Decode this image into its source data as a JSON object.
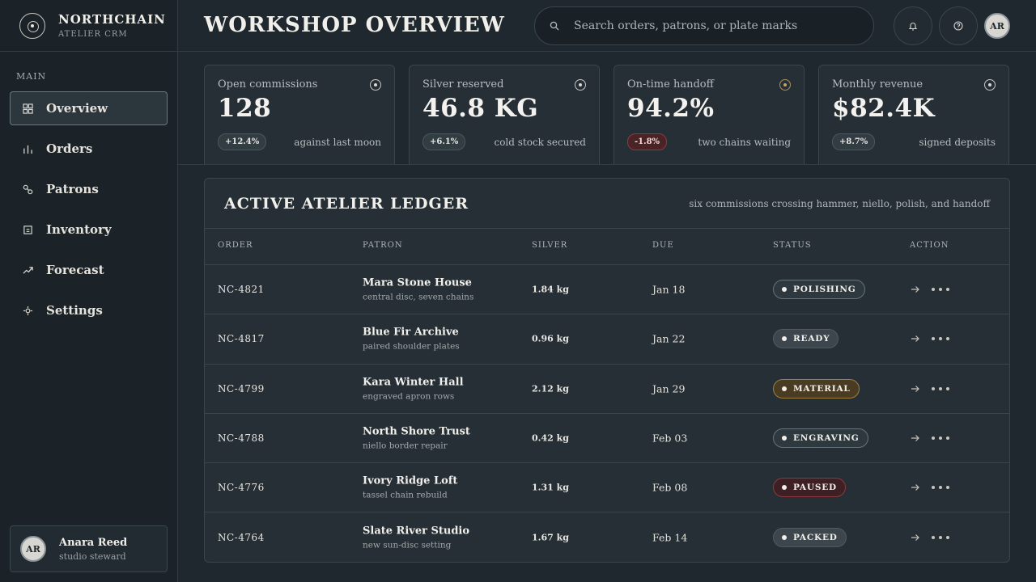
{
  "brand": {
    "name": "NORTHCHAIN",
    "subtitle": "ATELIER CRM"
  },
  "sidebar": {
    "section": "MAIN",
    "items": [
      {
        "label": "Overview",
        "icon": "grid-icon",
        "active": true
      },
      {
        "label": "Orders",
        "icon": "bars-icon",
        "active": false
      },
      {
        "label": "Patrons",
        "icon": "link-icon",
        "active": false
      },
      {
        "label": "Inventory",
        "icon": "box-icon",
        "active": false
      },
      {
        "label": "Forecast",
        "icon": "trend-icon",
        "active": false
      },
      {
        "label": "Settings",
        "icon": "gear-icon",
        "active": false
      }
    ]
  },
  "user": {
    "initials": "AR",
    "name": "Anara Reed",
    "role": "studio steward"
  },
  "header": {
    "title": "WORKSHOP OVERVIEW",
    "search_placeholder": "Search orders, patrons, or plate marks",
    "avatar_initials": "AR"
  },
  "stats": [
    {
      "label": "Open commissions",
      "value": "128",
      "delta": "+12.4%",
      "note": "against last moon"
    },
    {
      "label": "Silver reserved",
      "value": "46.8 KG",
      "delta": "+6.1%",
      "note": "cold stock secured"
    },
    {
      "label": "On-time handoff",
      "value": "94.2%",
      "delta": "-1.8%",
      "note": "two chains waiting"
    },
    {
      "label": "Monthly revenue",
      "value": "$82.4K",
      "delta": "+8.7%",
      "note": "signed deposits"
    }
  ],
  "ledger": {
    "title": "ACTIVE ATELIER LEDGER",
    "subtitle": "six commissions crossing hammer, niello, polish, and handoff",
    "columns": [
      "ORDER",
      "PATRON",
      "SILVER",
      "DUE",
      "STATUS",
      "ACTION"
    ],
    "rows": [
      {
        "order": "NC-4821",
        "patron": "Mara Stone House",
        "note": "central disc, seven chains",
        "silver": "1.84 kg",
        "due": "Jan 18",
        "status": "POLISHING"
      },
      {
        "order": "NC-4817",
        "patron": "Blue Fir Archive",
        "note": "paired shoulder plates",
        "silver": "0.96 kg",
        "due": "Jan 22",
        "status": "READY"
      },
      {
        "order": "NC-4799",
        "patron": "Kara Winter Hall",
        "note": "engraved apron rows",
        "silver": "2.12 kg",
        "due": "Jan 29",
        "status": "MATERIAL"
      },
      {
        "order": "NC-4788",
        "patron": "North Shore Trust",
        "note": "niello border repair",
        "silver": "0.42 kg",
        "due": "Feb 03",
        "status": "ENGRAVING"
      },
      {
        "order": "NC-4776",
        "patron": "Ivory Ridge Loft",
        "note": "tassel chain rebuild",
        "silver": "1.31 kg",
        "due": "Feb 08",
        "status": "PAUSED"
      },
      {
        "order": "NC-4764",
        "patron": "Slate River Studio",
        "note": "new sun-disc setting",
        "silver": "1.67 kg",
        "due": "Feb 14",
        "status": "PACKED"
      }
    ]
  }
}
